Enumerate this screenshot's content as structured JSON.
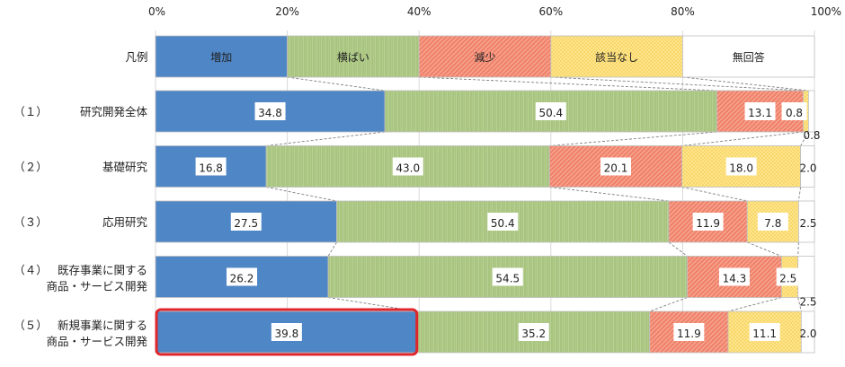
{
  "chart_data": {
    "type": "bar",
    "stacked": true,
    "orientation": "horizontal",
    "xlim": [
      0,
      100
    ],
    "ticks": [
      "0%",
      "20%",
      "40%",
      "60%",
      "80%",
      "100%"
    ],
    "legend_label": "凡例",
    "series": [
      {
        "name": "増加",
        "color": "#4f86c6",
        "values": [
          34.8,
          16.8,
          27.5,
          26.2,
          39.8
        ]
      },
      {
        "name": "横ばい",
        "color": "#a9c47f",
        "values": [
          50.4,
          43.0,
          50.4,
          54.5,
          35.2
        ]
      },
      {
        "name": "減少",
        "color": "#f0826a",
        "values": [
          13.1,
          20.1,
          11.9,
          14.3,
          11.9
        ]
      },
      {
        "name": "該当なし",
        "color": "#fde68c",
        "values": [
          0.8,
          18.0,
          7.8,
          2.5,
          11.1
        ]
      },
      {
        "name": "無回答",
        "color": "#ffffff",
        "values": [
          0.8,
          2.0,
          2.5,
          2.5,
          2.0
        ]
      }
    ],
    "categories": [
      {
        "num": "（１）",
        "lines": [
          "研究開発全体"
        ],
        "labels": [
          "34.8",
          "50.4",
          "13.1",
          "0.8",
          "0.8"
        ]
      },
      {
        "num": "（２）",
        "lines": [
          "基礎研究"
        ],
        "labels": [
          "16.8",
          "43.0",
          "20.1",
          "18.0",
          "2.0"
        ]
      },
      {
        "num": "（３）",
        "lines": [
          "応用研究"
        ],
        "labels": [
          "27.5",
          "50.4",
          "11.9",
          "7.8",
          "2.5"
        ]
      },
      {
        "num": "（４）",
        "lines": [
          "既存事業に関する",
          "商品・サービス開発"
        ],
        "labels": [
          "26.2",
          "54.5",
          "14.3",
          "2.5",
          "2.5"
        ]
      },
      {
        "num": "（５）",
        "lines": [
          "新規事業に関する",
          "商品・サービス開発"
        ],
        "labels": [
          "39.8",
          "35.2",
          "11.9",
          "11.1",
          "2.0"
        ]
      }
    ],
    "highlight": {
      "category_index": 4,
      "series_index": 0,
      "color": "#e0262b"
    }
  }
}
